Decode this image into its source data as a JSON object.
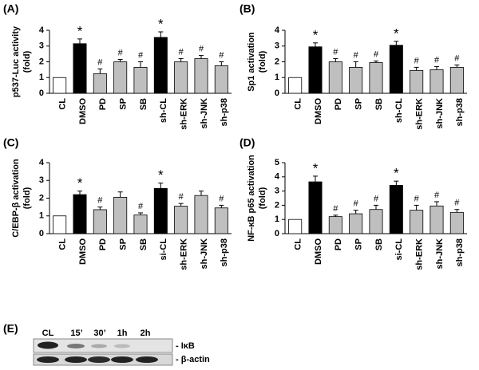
{
  "chart_data": [
    {
      "type": "bar",
      "panel": "(A)",
      "ylabel": [
        "p537-Luc activity",
        "(fold)"
      ],
      "categories": [
        "CL",
        "DMSO",
        "PD",
        "SP",
        "SB",
        "sh-CL",
        "sh-ERK",
        "sh-JNK",
        "sh-p38"
      ],
      "values": [
        1,
        3.15,
        1.25,
        2.0,
        1.65,
        3.55,
        2.0,
        2.2,
        1.75
      ],
      "errors": [
        null,
        0.3,
        0.3,
        0.15,
        0.35,
        0.35,
        0.2,
        0.2,
        0.25
      ],
      "colors": [
        "#ffffff",
        "#000000",
        "#bfbfbf",
        "#bfbfbf",
        "#bfbfbf",
        "#000000",
        "#bfbfbf",
        "#bfbfbf",
        "#bfbfbf"
      ],
      "annotations": [
        null,
        "*",
        "#",
        "#",
        "#",
        "*",
        "#",
        "#",
        "#"
      ],
      "ylim": [
        0,
        4
      ],
      "yticks": [
        0,
        1,
        2,
        3,
        4
      ]
    },
    {
      "type": "bar",
      "panel": "(B)",
      "ylabel": [
        "Sp1 activation",
        "(fold)"
      ],
      "categories": [
        "CL",
        "DMSO",
        "PD",
        "SP",
        "SB",
        "sh-CL",
        "sh-ERK",
        "sh-JNK",
        "sh-p38"
      ],
      "values": [
        1,
        2.95,
        2.0,
        1.65,
        1.95,
        3.05,
        1.45,
        1.5,
        1.65
      ],
      "errors": [
        null,
        0.25,
        0.2,
        0.35,
        0.1,
        0.25,
        0.2,
        0.2,
        0.15
      ],
      "colors": [
        "#ffffff",
        "#000000",
        "#bfbfbf",
        "#bfbfbf",
        "#bfbfbf",
        "#000000",
        "#bfbfbf",
        "#bfbfbf",
        "#bfbfbf"
      ],
      "annotations": [
        null,
        "*",
        "#",
        "#",
        "#",
        "*",
        "#",
        "#",
        "#"
      ],
      "ylim": [
        0,
        4
      ],
      "yticks": [
        0,
        1,
        2,
        3,
        4
      ]
    },
    {
      "type": "bar",
      "panel": "(C)",
      "ylabel": [
        "C/EBP-β activation",
        "(fold)"
      ],
      "categories": [
        "CL",
        "DMSO",
        "PD",
        "SP",
        "SB",
        "si-CL",
        "sh-ERK",
        "sh-JNK",
        "sh-p38"
      ],
      "values": [
        1,
        2.2,
        1.35,
        2.05,
        1.05,
        2.55,
        1.55,
        2.15,
        1.45
      ],
      "errors": [
        null,
        0.2,
        0.15,
        0.3,
        0.12,
        0.3,
        0.15,
        0.25,
        0.15
      ],
      "colors": [
        "#ffffff",
        "#000000",
        "#bfbfbf",
        "#bfbfbf",
        "#bfbfbf",
        "#000000",
        "#bfbfbf",
        "#bfbfbf",
        "#bfbfbf"
      ],
      "annotations": [
        null,
        "*",
        "#",
        null,
        "#",
        "*",
        "#",
        null,
        "#"
      ],
      "ylim": [
        0,
        4
      ],
      "yticks": [
        0,
        1,
        2,
        3,
        4
      ]
    },
    {
      "type": "bar",
      "panel": "(D)",
      "ylabel": [
        "NF-κB p65 activation",
        "(fold)"
      ],
      "categories": [
        "CL",
        "DMSO",
        "PD",
        "SP",
        "SB",
        "si-CL",
        "sh-ERK",
        "sh-JNK",
        "sh-p38"
      ],
      "values": [
        1,
        3.65,
        1.2,
        1.4,
        1.7,
        3.4,
        1.65,
        1.95,
        1.5
      ],
      "errors": [
        null,
        0.4,
        0.1,
        0.25,
        0.3,
        0.3,
        0.35,
        0.3,
        0.2
      ],
      "colors": [
        "#ffffff",
        "#000000",
        "#bfbfbf",
        "#bfbfbf",
        "#bfbfbf",
        "#000000",
        "#bfbfbf",
        "#bfbfbf",
        "#bfbfbf"
      ],
      "annotations": [
        null,
        "*",
        "#",
        "#",
        "#",
        "*",
        "#",
        "#",
        "#"
      ],
      "ylim": [
        0,
        5
      ],
      "yticks": [
        0,
        1,
        2,
        3,
        4,
        5
      ]
    }
  ],
  "blot": {
    "panel": "(E)",
    "lanes": [
      "CL",
      "15’",
      "30’",
      "1h",
      "2h"
    ],
    "rows": [
      "- IκB",
      "- β-actin"
    ]
  }
}
